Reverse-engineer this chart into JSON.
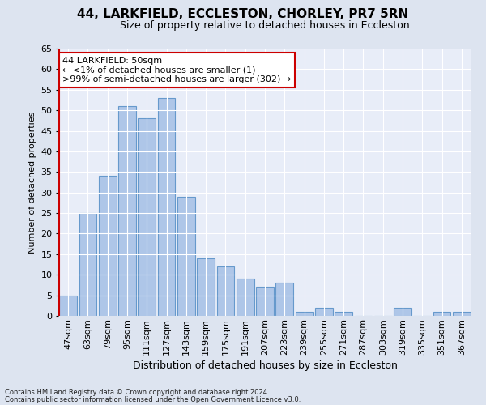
{
  "title1": "44, LARKFIELD, ECCLESTON, CHORLEY, PR7 5RN",
  "title2": "Size of property relative to detached houses in Eccleston",
  "xlabel": "Distribution of detached houses by size in Eccleston",
  "ylabel": "Number of detached properties",
  "categories": [
    "47sqm",
    "63sqm",
    "79sqm",
    "95sqm",
    "111sqm",
    "127sqm",
    "143sqm",
    "159sqm",
    "175sqm",
    "191sqm",
    "207sqm",
    "223sqm",
    "239sqm",
    "255sqm",
    "271sqm",
    "287sqm",
    "303sqm",
    "319sqm",
    "335sqm",
    "351sqm",
    "367sqm"
  ],
  "values": [
    5,
    25,
    34,
    51,
    48,
    53,
    29,
    14,
    12,
    9,
    7,
    8,
    1,
    2,
    1,
    0,
    0,
    2,
    0,
    1,
    1
  ],
  "bar_color": "#aec6e8",
  "bar_edge_color": "#6699cc",
  "highlight_color": "#cc0000",
  "ylim": [
    0,
    65
  ],
  "yticks": [
    0,
    5,
    10,
    15,
    20,
    25,
    30,
    35,
    40,
    45,
    50,
    55,
    60,
    65
  ],
  "annotation_text": "44 LARKFIELD: 50sqm\n← <1% of detached houses are smaller (1)\n>99% of semi-detached houses are larger (302) →",
  "annotation_box_color": "#ffffff",
  "annotation_box_edge_color": "#cc0000",
  "footer1": "Contains HM Land Registry data © Crown copyright and database right 2024.",
  "footer2": "Contains public sector information licensed under the Open Government Licence v3.0.",
  "bg_color": "#dde4f0",
  "plot_bg_color": "#e8edf8",
  "grid_color": "#ffffff",
  "title1_fontsize": 11,
  "title2_fontsize": 9,
  "ylabel_fontsize": 8,
  "xlabel_fontsize": 9,
  "tick_fontsize": 8,
  "annotation_fontsize": 8,
  "footer_fontsize": 6
}
